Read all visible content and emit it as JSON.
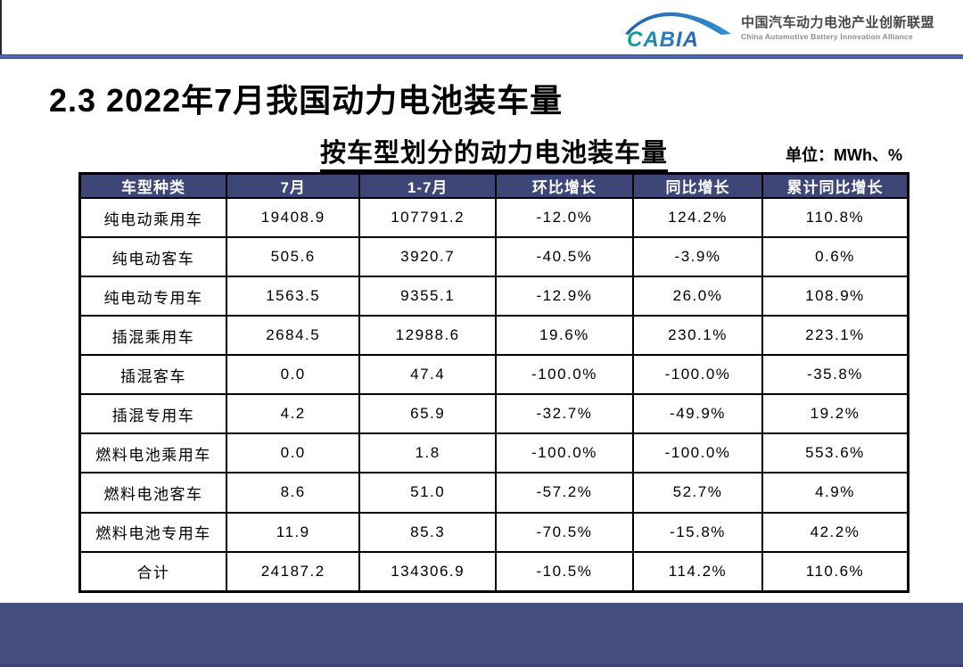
{
  "logo": {
    "brand": "CABIA",
    "cn_name": "中国汽车动力电池产业创新联盟",
    "en_name": "China Automotive Battery Innovation Alliance",
    "colors": {
      "teal": "#0aa596",
      "blue": "#2b62ad",
      "cn_text": "#474747",
      "en_text": "#8c8c8c"
    }
  },
  "title": "2.3 2022年7月我国动力电池装车量",
  "table_title": "按车型划分的动力电池装车量",
  "unit_label": "单位：MWh、%",
  "accent": {
    "rule_color": "#4a69b0",
    "header_bg": "#3d4677",
    "footer_bar": "#444f80"
  },
  "table": {
    "headers": [
      "车型种类",
      "7月",
      "1-7月",
      "环比增长",
      "同比增长",
      "累计同比增长"
    ],
    "col_widths_pct": [
      17.7,
      16.1,
      16.4,
      16.6,
      15.6,
      17.6
    ],
    "rows": [
      [
        "纯电动乘用车",
        "19408.9",
        "107791.2",
        "-12.0%",
        "124.2%",
        "110.8%"
      ],
      [
        "纯电动客车",
        "505.6",
        "3920.7",
        "-40.5%",
        "-3.9%",
        "0.6%"
      ],
      [
        "纯电动专用车",
        "1563.5",
        "9355.1",
        "-12.9%",
        "26.0%",
        "108.9%"
      ],
      [
        "插混乘用车",
        "2684.5",
        "12988.6",
        "19.6%",
        "230.1%",
        "223.1%"
      ],
      [
        "插混客车",
        "0.0",
        "47.4",
        "-100.0%",
        "-100.0%",
        "-35.8%"
      ],
      [
        "插混专用车",
        "4.2",
        "65.9",
        "-32.7%",
        "-49.9%",
        "19.2%"
      ],
      [
        "燃料电池乘用车",
        "0.0",
        "1.8",
        "-100.0%",
        "-100.0%",
        "553.6%"
      ],
      [
        "燃料电池客车",
        "8.6",
        "51.0",
        "-57.2%",
        "52.7%",
        "4.9%"
      ],
      [
        "燃料电池专用车",
        "11.9",
        "85.3",
        "-70.5%",
        "-15.8%",
        "42.2%"
      ],
      [
        "合计",
        "24187.2",
        "134306.9",
        "-10.5%",
        "114.2%",
        "110.6%"
      ]
    ]
  },
  "chart_data": {
    "type": "table",
    "title": "按车型划分的动力电池装车量",
    "unit": "MWh、%",
    "columns": [
      "车型种类",
      "7月",
      "1-7月",
      "环比增长",
      "同比增长",
      "累计同比增长"
    ],
    "rows": [
      [
        "纯电动乘用车",
        19408.9,
        107791.2,
        -12.0,
        124.2,
        110.8
      ],
      [
        "纯电动客车",
        505.6,
        3920.7,
        -40.5,
        -3.9,
        0.6
      ],
      [
        "纯电动专用车",
        1563.5,
        9355.1,
        -12.9,
        26.0,
        108.9
      ],
      [
        "插混乘用车",
        2684.5,
        12988.6,
        19.6,
        230.1,
        223.1
      ],
      [
        "插混客车",
        0.0,
        47.4,
        -100.0,
        -100.0,
        -35.8
      ],
      [
        "插混专用车",
        4.2,
        65.9,
        -32.7,
        -49.9,
        19.2
      ],
      [
        "燃料电池乘用车",
        0.0,
        1.8,
        -100.0,
        -100.0,
        553.6
      ],
      [
        "燃料电池客车",
        8.6,
        51.0,
        -57.2,
        52.7,
        4.9
      ],
      [
        "燃料电池专用车",
        11.9,
        85.3,
        -70.5,
        -15.8,
        42.2
      ],
      [
        "合计",
        24187.2,
        134306.9,
        -10.5,
        114.2,
        110.6
      ]
    ]
  }
}
